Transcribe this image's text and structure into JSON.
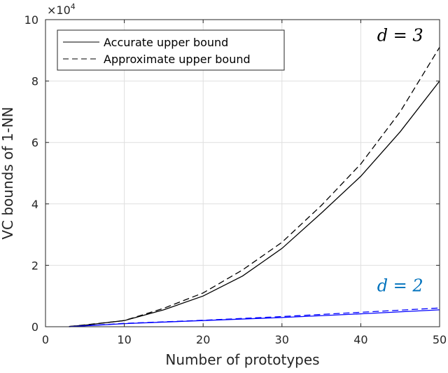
{
  "chart_data": {
    "type": "line",
    "title": "",
    "xlabel": "Number of prototypes",
    "ylabel": "VC bounds of 1-NN",
    "exponent_label": "×10",
    "exponent_power": "4",
    "xlim": [
      0,
      50
    ],
    "ylim": [
      0,
      10
    ],
    "y_scale_factor": 10000,
    "xticks": [
      0,
      10,
      20,
      30,
      40,
      50
    ],
    "yticks": [
      0,
      2,
      4,
      6,
      8,
      10
    ],
    "grid": true,
    "legend": {
      "placement": "top-left",
      "entries": [
        {
          "label": "Accurate upper bound",
          "style": "solid"
        },
        {
          "label": "Approximate upper bound",
          "style": "dashed"
        }
      ]
    },
    "annotations": [
      {
        "text": "d = 3",
        "color": "#000000",
        "x": 45,
        "y": 9.3
      },
      {
        "text": "d = 2",
        "color": "#0072BD",
        "x": 45,
        "y": 1.15
      }
    ],
    "series": [
      {
        "group": "d = 3",
        "style": "solid",
        "color": "#000000",
        "x": [
          3,
          5,
          10,
          15,
          20,
          25,
          30,
          35,
          40,
          45,
          50
        ],
        "y": [
          0.01,
          0.05,
          0.2,
          0.55,
          1.0,
          1.65,
          2.55,
          3.7,
          4.9,
          6.35,
          8.0
        ]
      },
      {
        "group": "d = 3",
        "style": "dashed",
        "color": "#000000",
        "x": [
          3,
          5,
          10,
          15,
          20,
          25,
          30,
          35,
          40,
          45,
          50
        ],
        "y": [
          0.01,
          0.06,
          0.2,
          0.6,
          1.1,
          1.85,
          2.75,
          3.95,
          5.3,
          7.0,
          9.1
        ]
      },
      {
        "group": "d = 2",
        "style": "solid",
        "color": "#0000FF",
        "x": [
          3,
          10,
          20,
          30,
          40,
          50
        ],
        "y": [
          0.0,
          0.1,
          0.2,
          0.3,
          0.42,
          0.55
        ]
      },
      {
        "group": "d = 2",
        "style": "dashed",
        "color": "#0000FF",
        "x": [
          3,
          10,
          20,
          30,
          40,
          50
        ],
        "y": [
          0.0,
          0.11,
          0.21,
          0.33,
          0.47,
          0.61
        ]
      }
    ]
  }
}
